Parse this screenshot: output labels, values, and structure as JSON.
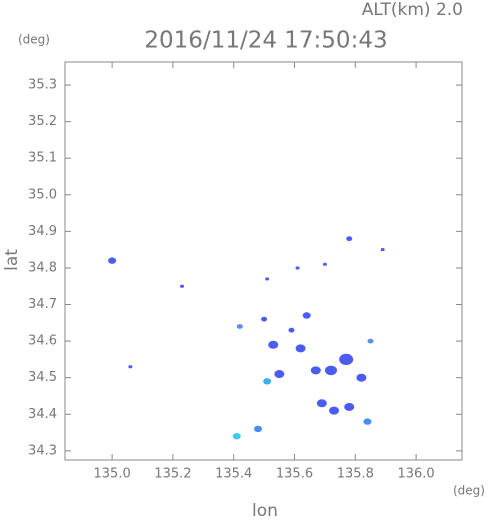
{
  "chart_data": {
    "type": "scatter",
    "title": "2016/11/24 17:50:43",
    "annotation": "ALT(km) 2.0",
    "y_unit": "(deg)",
    "x_unit": "(deg)",
    "x_label": "lon",
    "y_label": "lat",
    "x": [
      135.0,
      135.23,
      135.06,
      135.51,
      135.61,
      135.7,
      135.78,
      135.89,
      135.42,
      135.5,
      135.64,
      135.59,
      135.53,
      135.62,
      135.77,
      135.72,
      135.67,
      135.82,
      135.55,
      135.51,
      135.69,
      135.73,
      135.78,
      135.84,
      135.41,
      135.48,
      135.85
    ],
    "y": [
      34.82,
      34.75,
      34.53,
      34.77,
      34.8,
      34.81,
      34.88,
      34.85,
      34.64,
      34.66,
      34.67,
      34.63,
      34.59,
      34.58,
      34.55,
      34.52,
      34.52,
      34.5,
      34.51,
      34.49,
      34.43,
      34.41,
      34.42,
      34.38,
      34.34,
      34.36,
      34.6
    ],
    "colors": [
      "#4a5cf2",
      "#4a5cf2",
      "#4a5cf2",
      "#4a5cf2",
      "#4a5cf2",
      "#4a5cf2",
      "#4a5cf2",
      "#4a5cf2",
      "#5a8cf2",
      "#4a5cf2",
      "#4a5cf2",
      "#4a5cf2",
      "#4a5cf2",
      "#4a5cf2",
      "#4a5cf2",
      "#4a5cf2",
      "#4a5cf2",
      "#4a5cf2",
      "#4a5cf2",
      "#3ab0f0",
      "#4a5cf2",
      "#4a5cf2",
      "#4a5cf2",
      "#4a8cf2",
      "#40c8f0",
      "#4a8cf2",
      "#5a8cf2"
    ],
    "sizes": [
      4,
      2,
      2,
      2,
      2,
      2,
      3,
      2,
      3,
      3,
      4,
      3,
      5,
      5,
      7,
      6,
      5,
      5,
      5,
      4,
      5,
      5,
      5,
      4,
      4,
      4,
      3
    ],
    "xlim": [
      134.845,
      136.151
    ],
    "ylim": [
      34.275,
      35.363
    ],
    "xticks": [
      {
        "value": 135.0,
        "label": "135.0"
      },
      135.2,
      135.4,
      135.6,
      135.8,
      {
        "value": 136.0,
        "label": "136.0"
      }
    ],
    "yticks": [
      34.3,
      34.4,
      34.5,
      34.6,
      34.7,
      34.8,
      34.9,
      {
        "value": 35.0,
        "label": "35.0"
      },
      35.1,
      35.2,
      35.3
    ]
  }
}
